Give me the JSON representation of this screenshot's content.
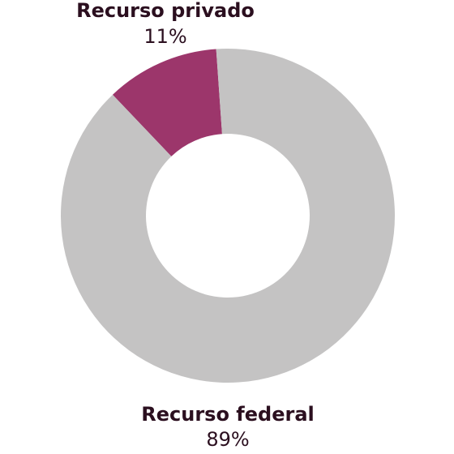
{
  "chart_data": {
    "type": "donut",
    "categories": [
      "Recurso privado",
      "Recurso federal"
    ],
    "values": [
      11,
      89
    ],
    "value_labels": [
      "11%",
      "89%"
    ],
    "colors": [
      "#9c366b",
      "#c4c3c3"
    ]
  }
}
